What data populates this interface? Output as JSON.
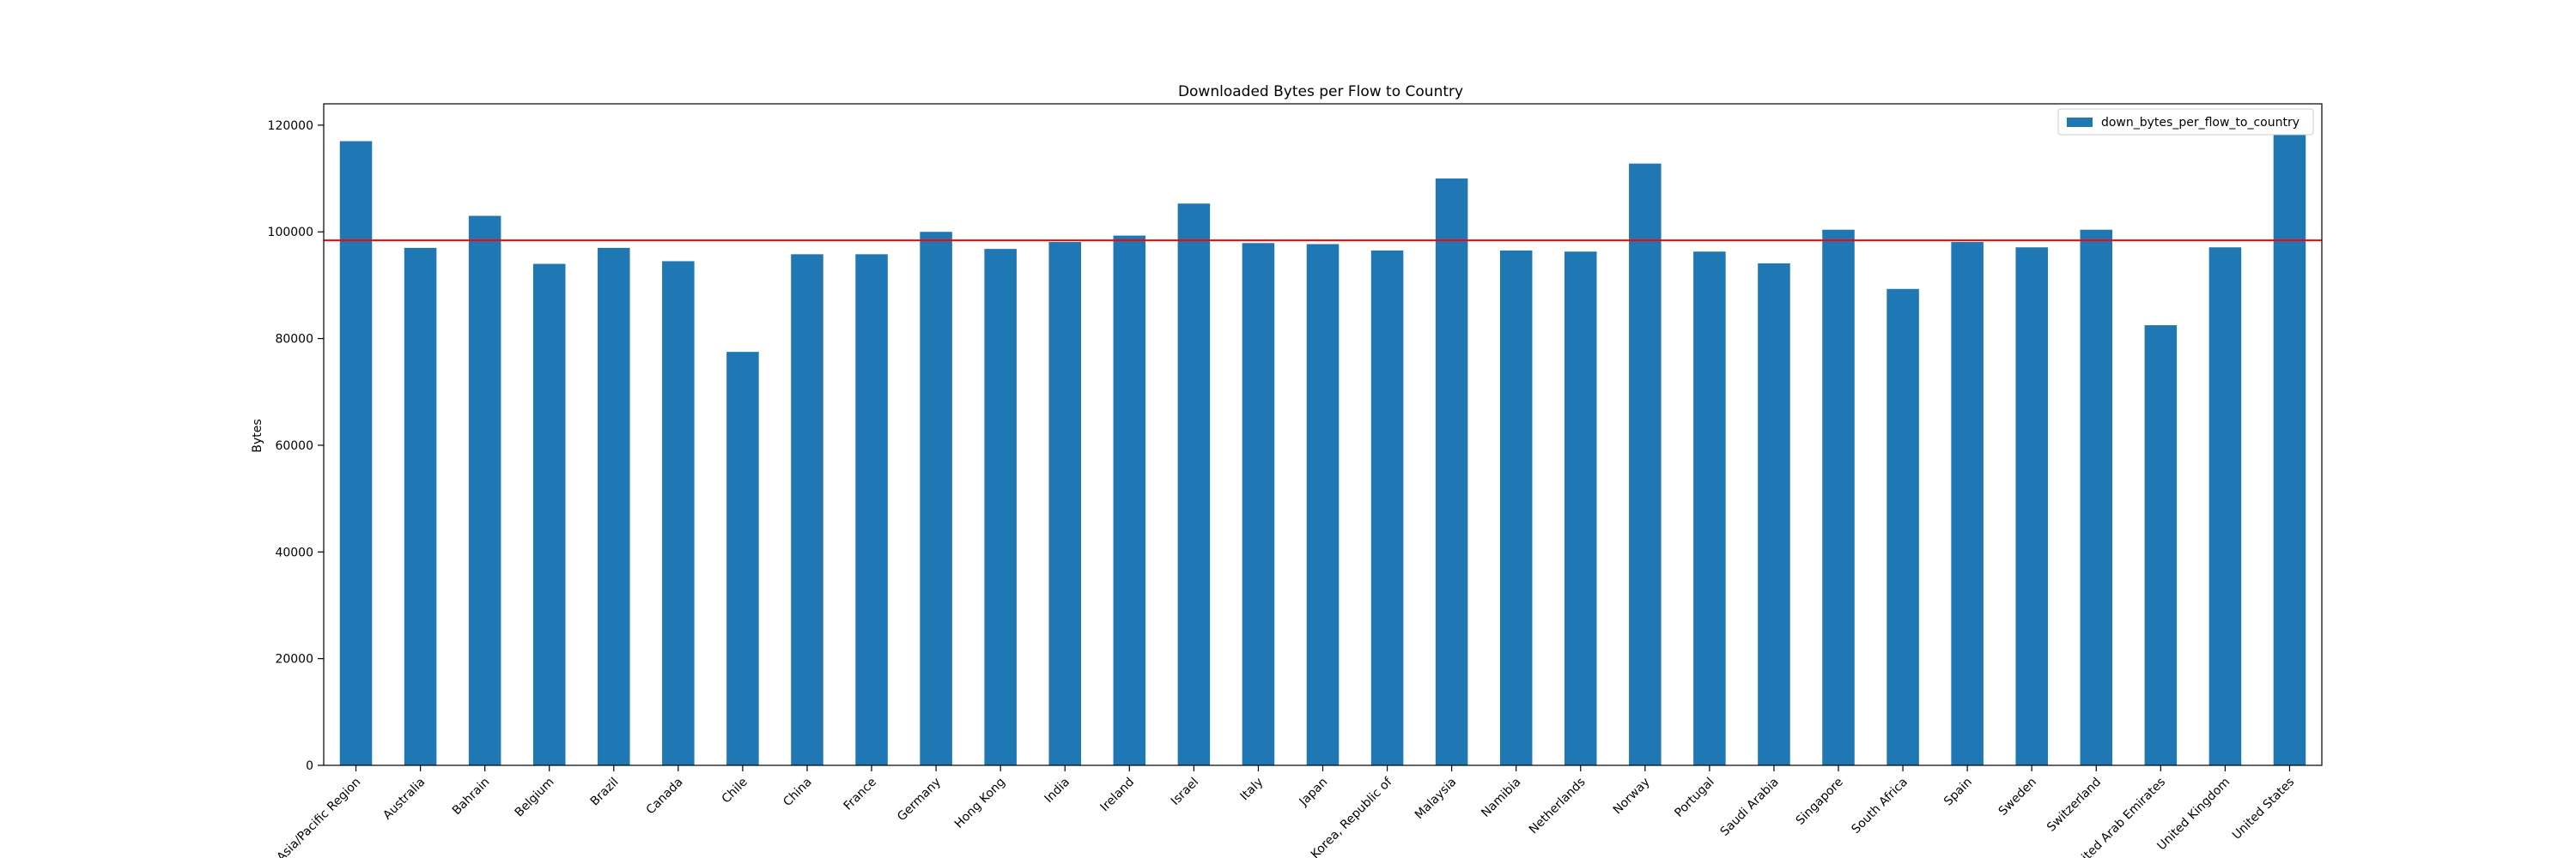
{
  "chart_data": {
    "type": "bar",
    "title": "Downloaded Bytes per Flow to Country",
    "xlabel": "",
    "ylabel": "Bytes",
    "ylim": [
      0,
      124000
    ],
    "yticks": [
      0,
      20000,
      40000,
      60000,
      80000,
      100000,
      120000
    ],
    "grid": false,
    "legend_position": "top-right",
    "categories": [
      "Asia/Pacific Region",
      "Australia",
      "Bahrain",
      "Belgium",
      "Brazil",
      "Canada",
      "Chile",
      "China",
      "France",
      "Germany",
      "Hong Kong",
      "India",
      "Ireland",
      "Israel",
      "Italy",
      "Japan",
      "Korea, Republic of",
      "Malaysia",
      "Namibia",
      "Netherlands",
      "Norway",
      "Portugal",
      "Saudi Arabia",
      "Singapore",
      "South Africa",
      "Spain",
      "Sweden",
      "Switzerland",
      "United Arab Emirates",
      "United Kingdom",
      "United States"
    ],
    "series": [
      {
        "name": "down_bytes_per_flow_to_country",
        "color": "#1f77b4",
        "values": [
          117000,
          97000,
          103000,
          94000,
          97000,
          94500,
          77500,
          95800,
          95800,
          100000,
          96800,
          98100,
          99300,
          105300,
          97900,
          97700,
          96500,
          110000,
          96500,
          96300,
          112800,
          96300,
          94100,
          100400,
          89300,
          98100,
          97100,
          100400,
          82500,
          97100,
          118300
        ]
      }
    ],
    "reference_line": {
      "value": 98400,
      "color": "#ff0000"
    }
  }
}
